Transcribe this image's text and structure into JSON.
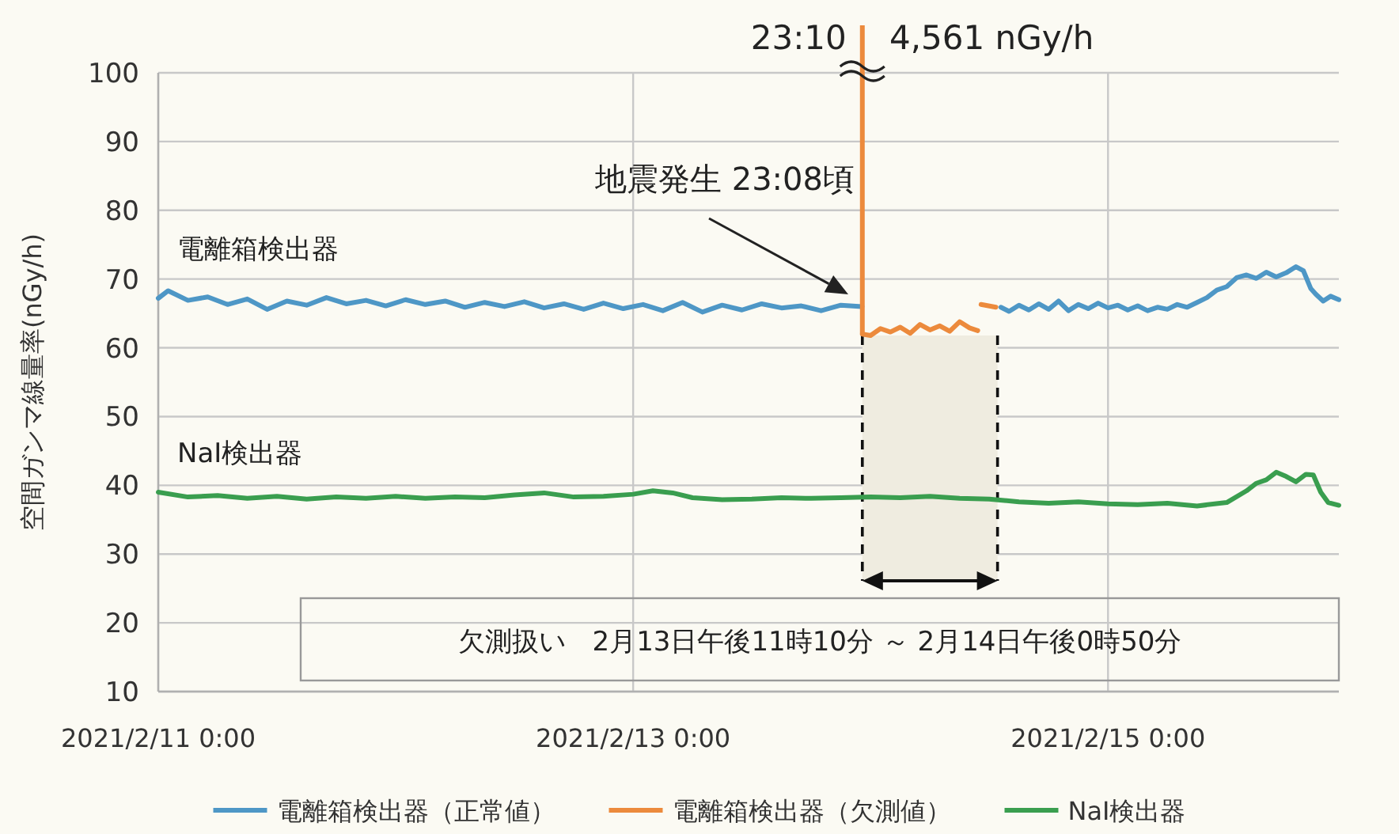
{
  "chart_data": {
    "type": "line",
    "ylabel": "空間ガンマ線量率(nGy/h)",
    "xlim": [
      "2021-02-11T00:00",
      "2021-02-15T23:20"
    ],
    "xticks": [
      {
        "value": "2021-02-11T00:00",
        "label": "2021/2/11 0:00"
      },
      {
        "value": "2021-02-13T00:00",
        "label": "2021/2/13 0:00"
      },
      {
        "value": "2021-02-15T00:00",
        "label": "2021/2/15 0:00"
      }
    ],
    "ylim": [
      10,
      100
    ],
    "yticks": [
      10,
      20,
      30,
      40,
      50,
      60,
      70,
      80,
      90,
      100
    ],
    "grid": true,
    "legend": "bottom",
    "series": [
      {
        "name": "電離箱検出器（正常値）",
        "color": "#4e97c6",
        "x": [
          "2021-02-11T00:00",
          "2021-02-11T01:00",
          "2021-02-11T03:00",
          "2021-02-11T05:00",
          "2021-02-11T07:00",
          "2021-02-11T09:00",
          "2021-02-11T11:00",
          "2021-02-11T13:00",
          "2021-02-11T15:00",
          "2021-02-11T17:00",
          "2021-02-11T19:00",
          "2021-02-11T21:00",
          "2021-02-11T23:00",
          "2021-02-12T01:00",
          "2021-02-12T03:00",
          "2021-02-12T05:00",
          "2021-02-12T07:00",
          "2021-02-12T09:00",
          "2021-02-12T11:00",
          "2021-02-12T13:00",
          "2021-02-12T15:00",
          "2021-02-12T17:00",
          "2021-02-12T19:00",
          "2021-02-12T21:00",
          "2021-02-12T23:00",
          "2021-02-13T01:00",
          "2021-02-13T03:00",
          "2021-02-13T05:00",
          "2021-02-13T07:00",
          "2021-02-13T09:00",
          "2021-02-13T11:00",
          "2021-02-13T13:00",
          "2021-02-13T15:00",
          "2021-02-13T17:00",
          "2021-02-13T19:00",
          "2021-02-13T21:00",
          "2021-02-13T23:08",
          "2021-02-14T00:00",
          "2021-02-14T13:10",
          "2021-02-14T14:00",
          "2021-02-14T15:00",
          "2021-02-14T16:00",
          "2021-02-14T17:00",
          "2021-02-14T18:00",
          "2021-02-14T19:00",
          "2021-02-14T20:00",
          "2021-02-14T21:00",
          "2021-02-14T22:00",
          "2021-02-14T23:00",
          "2021-02-15T00:00",
          "2021-02-15T01:00",
          "2021-02-15T02:00",
          "2021-02-15T03:00",
          "2021-02-15T04:00",
          "2021-02-15T05:00",
          "2021-02-15T06:00",
          "2021-02-15T07:00",
          "2021-02-15T08:00",
          "2021-02-15T09:00",
          "2021-02-15T10:00",
          "2021-02-15T11:00",
          "2021-02-15T12:00",
          "2021-02-15T13:00",
          "2021-02-15T14:00",
          "2021-02-15T15:00",
          "2021-02-15T16:00",
          "2021-02-15T17:00",
          "2021-02-15T18:00",
          "2021-02-15T19:00",
          "2021-02-15T19:45",
          "2021-02-15T20:30",
          "2021-02-15T21:00",
          "2021-02-15T21:45",
          "2021-02-15T22:30",
          "2021-02-15T23:20"
        ],
        "values": [
          67.2,
          68.3,
          66.9,
          67.4,
          66.3,
          67.1,
          65.6,
          66.8,
          66.2,
          67.3,
          66.4,
          66.9,
          66.1,
          67.0,
          66.3,
          66.8,
          65.9,
          66.6,
          66.0,
          66.7,
          65.8,
          66.4,
          65.6,
          66.5,
          65.7,
          66.3,
          65.4,
          66.6,
          65.2,
          66.2,
          65.5,
          66.4,
          65.8,
          66.1,
          65.4,
          66.2,
          66.0,
          null,
          65.9,
          65.3,
          66.2,
          65.5,
          66.4,
          65.6,
          66.8,
          65.4,
          66.3,
          65.7,
          66.5,
          65.8,
          66.2,
          65.5,
          66.1,
          65.4,
          65.9,
          65.6,
          66.3,
          65.9,
          66.6,
          67.3,
          68.4,
          68.9,
          70.2,
          70.6,
          70.1,
          71.0,
          70.3,
          70.9,
          71.8,
          71.2,
          68.6,
          67.8,
          66.8,
          67.5,
          67.0
        ]
      },
      {
        "name": "電離箱検出器（欠測値）",
        "color": "#ec8a3c",
        "x": [
          "2021-02-13T23:10",
          "2021-02-14T00:00",
          "2021-02-14T01:00",
          "2021-02-14T02:00",
          "2021-02-14T03:00",
          "2021-02-14T04:00",
          "2021-02-14T05:00",
          "2021-02-14T06:00",
          "2021-02-14T07:00",
          "2021-02-14T08:00",
          "2021-02-14T09:00",
          "2021-02-14T10:00",
          "2021-02-14T10:50",
          "2021-02-14T11:00",
          "2021-02-14T11:10",
          "2021-02-14T12:40"
        ],
        "values": [
          62.0,
          61.8,
          62.8,
          62.3,
          63.0,
          62.1,
          63.4,
          62.6,
          63.2,
          62.4,
          63.8,
          62.9,
          62.5,
          null,
          66.3,
          65.9
        ]
      },
      {
        "name": "NaI検出器",
        "color": "#3a9e4f",
        "x": [
          "2021-02-11T00:00",
          "2021-02-11T03:00",
          "2021-02-11T06:00",
          "2021-02-11T09:00",
          "2021-02-11T12:00",
          "2021-02-11T15:00",
          "2021-02-11T18:00",
          "2021-02-11T21:00",
          "2021-02-12T00:00",
          "2021-02-12T03:00",
          "2021-02-12T06:00",
          "2021-02-12T09:00",
          "2021-02-12T12:00",
          "2021-02-12T15:00",
          "2021-02-12T18:00",
          "2021-02-12T21:00",
          "2021-02-13T00:00",
          "2021-02-13T02:00",
          "2021-02-13T04:00",
          "2021-02-13T06:00",
          "2021-02-13T09:00",
          "2021-02-13T12:00",
          "2021-02-13T15:00",
          "2021-02-13T18:00",
          "2021-02-13T21:00",
          "2021-02-14T00:00",
          "2021-02-14T03:00",
          "2021-02-14T06:00",
          "2021-02-14T09:00",
          "2021-02-14T12:00",
          "2021-02-14T15:00",
          "2021-02-14T18:00",
          "2021-02-14T21:00",
          "2021-02-15T00:00",
          "2021-02-15T03:00",
          "2021-02-15T06:00",
          "2021-02-15T09:00",
          "2021-02-15T12:00",
          "2021-02-15T14:00",
          "2021-02-15T15:00",
          "2021-02-15T16:00",
          "2021-02-15T17:00",
          "2021-02-15T18:00",
          "2021-02-15T19:00",
          "2021-02-15T20:00",
          "2021-02-15T20:45",
          "2021-02-15T21:30",
          "2021-02-15T22:15",
          "2021-02-15T23:20"
        ],
        "values": [
          39.0,
          38.3,
          38.5,
          38.1,
          38.4,
          38.0,
          38.3,
          38.1,
          38.4,
          38.1,
          38.3,
          38.2,
          38.6,
          38.9,
          38.3,
          38.4,
          38.7,
          39.2,
          38.9,
          38.2,
          37.9,
          38.0,
          38.2,
          38.1,
          38.2,
          38.3,
          38.2,
          38.4,
          38.1,
          38.0,
          37.6,
          37.4,
          37.6,
          37.3,
          37.2,
          37.4,
          37.0,
          37.5,
          39.2,
          40.3,
          40.8,
          41.9,
          41.3,
          40.5,
          41.6,
          41.5,
          39.0,
          37.5,
          37.1
        ]
      }
    ],
    "ref_lines": [
      {
        "axis": "x",
        "value": "2021-02-13T23:10",
        "label": "23:10",
        "color": "#ec8a3c"
      }
    ],
    "bands": [
      {
        "axis": "x",
        "from": "2021-02-13T23:10",
        "to": "2021-02-14T12:50",
        "label": "欠測扱い　2月13日午後11時10分 ～ 2月14日午後0時50分"
      }
    ],
    "annotations": [
      "4,561 nGy/h",
      "地震発生 23:08頃",
      "電離箱検出器",
      "NaI検出器"
    ]
  }
}
